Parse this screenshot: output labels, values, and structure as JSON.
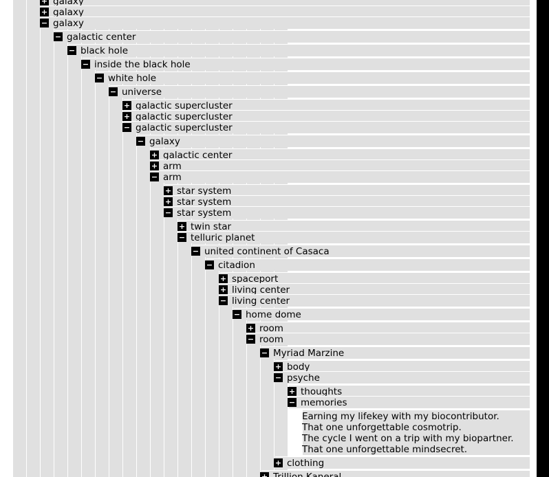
{
  "toggle_glyphs": {
    "expanded": "−",
    "collapsed": "+"
  },
  "tree": [
    {
      "depth": 0,
      "state": "collapsed",
      "label": "galaxy",
      "row": "partial"
    },
    {
      "depth": 0,
      "state": "collapsed",
      "label": "galaxy"
    },
    {
      "depth": 0,
      "state": "expanded",
      "label": "galaxy"
    },
    {
      "depth": 1,
      "state": "expanded",
      "label": "galactic center"
    },
    {
      "depth": 2,
      "state": "expanded",
      "label": "black hole"
    },
    {
      "depth": 3,
      "state": "expanded",
      "label": "inside the black hole"
    },
    {
      "depth": 4,
      "state": "expanded",
      "label": "white hole"
    },
    {
      "depth": 5,
      "state": "expanded",
      "label": "universe"
    },
    {
      "depth": 6,
      "state": "collapsed",
      "label": "galactic supercluster"
    },
    {
      "depth": 6,
      "state": "collapsed",
      "label": "galactic supercluster"
    },
    {
      "depth": 6,
      "state": "expanded",
      "label": "galactic supercluster"
    },
    {
      "depth": 7,
      "state": "expanded",
      "label": "galaxy"
    },
    {
      "depth": 8,
      "state": "collapsed",
      "label": "galactic center"
    },
    {
      "depth": 8,
      "state": "collapsed",
      "label": "arm"
    },
    {
      "depth": 8,
      "state": "expanded",
      "label": "arm"
    },
    {
      "depth": 9,
      "state": "collapsed",
      "label": "star system"
    },
    {
      "depth": 9,
      "state": "collapsed",
      "label": "star system"
    },
    {
      "depth": 9,
      "state": "expanded",
      "label": "star system"
    },
    {
      "depth": 10,
      "state": "collapsed",
      "label": "twin star"
    },
    {
      "depth": 10,
      "state": "expanded",
      "label": "telluric planet"
    },
    {
      "depth": 11,
      "state": "expanded",
      "label": "united continent of Casaca"
    },
    {
      "depth": 12,
      "state": "expanded",
      "label": "citadion"
    },
    {
      "depth": 13,
      "state": "collapsed",
      "label": "spaceport"
    },
    {
      "depth": 13,
      "state": "collapsed",
      "label": "living center"
    },
    {
      "depth": 13,
      "state": "expanded",
      "label": "living center"
    },
    {
      "depth": 14,
      "state": "expanded",
      "label": "home dome"
    },
    {
      "depth": 15,
      "state": "collapsed",
      "label": "room"
    },
    {
      "depth": 15,
      "state": "expanded",
      "label": "room"
    },
    {
      "depth": 16,
      "state": "expanded",
      "label": "Myriad Marzine"
    },
    {
      "depth": 17,
      "state": "collapsed",
      "label": "body"
    },
    {
      "depth": 17,
      "state": "expanded",
      "label": "psyche"
    },
    {
      "depth": 18,
      "state": "collapsed",
      "label": "thoughts"
    },
    {
      "depth": 18,
      "state": "expanded",
      "label": "memories"
    },
    {
      "depth": 19,
      "type": "text",
      "lines": [
        "Earning my lifekey with my biocontributor.",
        "That one unforgettable cosmotrip.",
        "The cycle I went on a trip with my biopartner.",
        "That one unforgettable mindsecret."
      ]
    },
    {
      "depth": 17,
      "state": "collapsed",
      "label": "clothing"
    },
    {
      "depth": 16,
      "state": "collapsed",
      "label": "Trillion Kaneral",
      "row": "cut"
    }
  ]
}
